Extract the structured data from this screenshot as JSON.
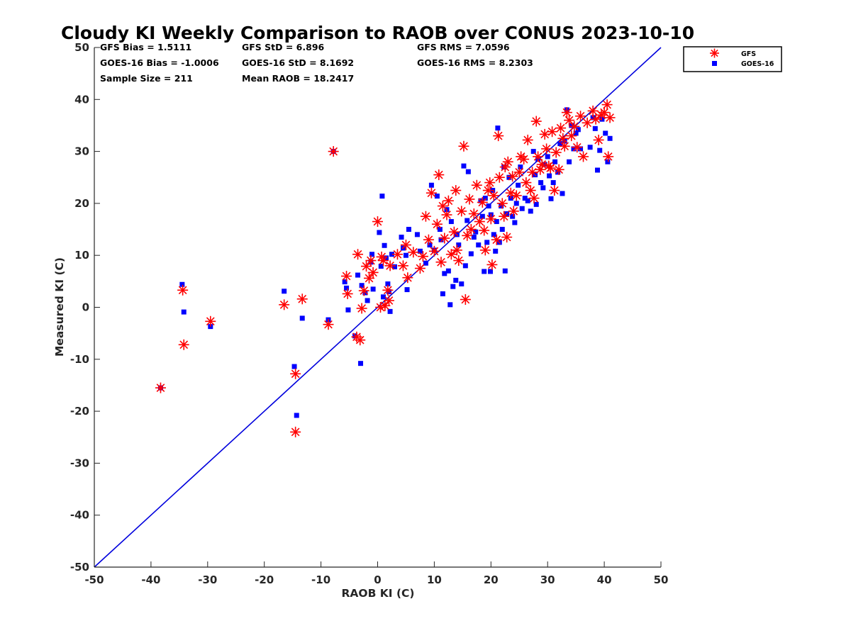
{
  "chart_data": {
    "type": "scatter",
    "title": "Cloudy KI Weekly Comparison to RAOB over CONUS 2023-10-10",
    "xlabel": "RAOB KI (C)",
    "ylabel": "Measured KI (C)",
    "xlim": [
      -50,
      50
    ],
    "ylim": [
      -50,
      50
    ],
    "xticks": [
      "-50",
      "-40",
      "-30",
      "-20",
      "-10",
      "0",
      "10",
      "20",
      "30",
      "40",
      "50"
    ],
    "yticks": [
      "50",
      "40",
      "30",
      "20",
      "10",
      "0",
      "-10",
      "-20",
      "-30",
      "-40",
      "-50"
    ],
    "grid": false,
    "legend_position": "top-right",
    "reference_line": {
      "x": [
        -50,
        50
      ],
      "y": [
        -50,
        50
      ],
      "color": "#0000dd"
    },
    "stats": [
      [
        "GFS Bias = 1.5111",
        "GFS StD = 6.896",
        "GFS RMS = 7.0596"
      ],
      [
        "GOES-16 Bias = -1.0006",
        "GOES-16 StD = 8.1692",
        "GOES-16 RMS = 8.2303"
      ],
      [
        "Sample Size = 211",
        "Mean RAOB = 18.2417",
        ""
      ]
    ],
    "series": [
      {
        "name": "GFS",
        "marker": "asterisk",
        "color": "#ff0000",
        "points": [
          [
            -38.3,
            -15.5
          ],
          [
            -34.4,
            3.3
          ],
          [
            -34.2,
            -7.2
          ],
          [
            -29.5,
            -2.7
          ],
          [
            -16.5,
            0.5
          ],
          [
            -14.5,
            -12.8
          ],
          [
            -14.5,
            -24
          ],
          [
            -13.3,
            1.6
          ],
          [
            -8.7,
            -3.3
          ],
          [
            -7.8,
            30
          ],
          [
            -5.5,
            6
          ],
          [
            -5.3,
            2.6
          ],
          [
            -3.7,
            -5.7
          ],
          [
            -3.5,
            10.2
          ],
          [
            -3.1,
            -6.3
          ],
          [
            -2.8,
            -0.2
          ],
          [
            -2.4,
            3.2
          ],
          [
            -2.0,
            7.9
          ],
          [
            -1.5,
            5.6
          ],
          [
            -1.2,
            9.0
          ],
          [
            -0.8,
            6.7
          ],
          [
            0,
            16.5
          ],
          [
            0.5,
            0
          ],
          [
            0.7,
            9.7
          ],
          [
            1.0,
            9.0
          ],
          [
            1.3,
            0.3
          ],
          [
            1.8,
            3.3
          ],
          [
            2.0,
            1.3
          ],
          [
            2.2,
            8.0
          ],
          [
            3.5,
            10.2
          ],
          [
            4.5,
            8.0
          ],
          [
            5.0,
            12.0
          ],
          [
            5.3,
            5.7
          ],
          [
            6.3,
            10.6
          ],
          [
            7.5,
            7.5
          ],
          [
            8.0,
            9.8
          ],
          [
            8.5,
            17.5
          ],
          [
            9.0,
            13.0
          ],
          [
            9.5,
            22.0
          ],
          [
            10.0,
            10.8
          ],
          [
            10.5,
            16.0
          ],
          [
            10.8,
            25.5
          ],
          [
            11.2,
            8.7
          ],
          [
            11.5,
            19.5
          ],
          [
            11.8,
            13.3
          ],
          [
            12.2,
            17.8
          ],
          [
            12.5,
            20.5
          ],
          [
            13.0,
            10.2
          ],
          [
            13.5,
            14.5
          ],
          [
            13.8,
            22.5
          ],
          [
            14.0,
            11.0
          ],
          [
            14.3,
            9.0
          ],
          [
            14.8,
            18.5
          ],
          [
            15.2,
            31.0
          ],
          [
            15.5,
            1.5
          ],
          [
            15.8,
            13.8
          ],
          [
            16.2,
            20.8
          ],
          [
            16.5,
            15.0
          ],
          [
            17.0,
            18.0
          ],
          [
            17.5,
            23.5
          ],
          [
            18.0,
            16.5
          ],
          [
            18.5,
            20.2
          ],
          [
            18.8,
            14.8
          ],
          [
            19.0,
            11.0
          ],
          [
            19.5,
            22.5
          ],
          [
            19.8,
            24.0
          ],
          [
            20.0,
            17.0
          ],
          [
            20.2,
            8.2
          ],
          [
            20.5,
            21.5
          ],
          [
            21.0,
            13.0
          ],
          [
            21.3,
            33.0
          ],
          [
            21.5,
            25.0
          ],
          [
            22.0,
            20.0
          ],
          [
            22.3,
            17.5
          ],
          [
            22.5,
            27.0
          ],
          [
            22.8,
            13.5
          ],
          [
            23.0,
            28.0
          ],
          [
            23.5,
            22.0
          ],
          [
            23.8,
            25.2
          ],
          [
            24.0,
            18.5
          ],
          [
            24.5,
            21.5
          ],
          [
            25.0,
            26.0
          ],
          [
            25.3,
            29.0
          ],
          [
            25.8,
            28.5
          ],
          [
            26.2,
            24.0
          ],
          [
            26.5,
            32.2
          ],
          [
            27.0,
            22.5
          ],
          [
            27.3,
            26.0
          ],
          [
            27.6,
            21.0
          ],
          [
            28.0,
            35.8
          ],
          [
            28.3,
            29.0
          ],
          [
            28.7,
            26.5
          ],
          [
            29.0,
            27.5
          ],
          [
            29.5,
            33.3
          ],
          [
            29.8,
            30.5
          ],
          [
            30.2,
            27.2
          ],
          [
            30.5,
            26.8
          ],
          [
            30.8,
            33.8
          ],
          [
            31.2,
            22.5
          ],
          [
            31.5,
            29.8
          ],
          [
            32.0,
            26.5
          ],
          [
            32.3,
            34.5
          ],
          [
            32.7,
            32.5
          ],
          [
            33.0,
            31.0
          ],
          [
            33.4,
            37.5
          ],
          [
            33.8,
            36.0
          ],
          [
            34.2,
            33.0
          ],
          [
            34.7,
            34.8
          ],
          [
            35.2,
            30.8
          ],
          [
            35.8,
            36.8
          ],
          [
            36.3,
            29.0
          ],
          [
            37.0,
            35.5
          ],
          [
            38.0,
            37.8
          ],
          [
            38.5,
            36.2
          ],
          [
            39.0,
            32.2
          ],
          [
            39.5,
            37.0
          ],
          [
            40.0,
            37.5
          ],
          [
            40.5,
            39.0
          ],
          [
            40.7,
            29.0
          ],
          [
            41.0,
            36.5
          ]
        ]
      },
      {
        "name": "GOES-16",
        "marker": "square",
        "color": "#0000ff",
        "points": [
          [
            -38.3,
            -15.5
          ],
          [
            -34.5,
            4.4
          ],
          [
            -34.2,
            -0.9
          ],
          [
            -29.5,
            -3.7
          ],
          [
            -16.5,
            3.1
          ],
          [
            -14.7,
            -11.4
          ],
          [
            -14.3,
            -20.8
          ],
          [
            -13.3,
            -2.1
          ],
          [
            -8.7,
            -2.4
          ],
          [
            -7.8,
            30
          ],
          [
            -5.8,
            4.9
          ],
          [
            -5.5,
            3.7
          ],
          [
            -5.2,
            -0.5
          ],
          [
            -4.0,
            -5.5
          ],
          [
            -3.5,
            6.2
          ],
          [
            -3.0,
            -10.8
          ],
          [
            -2.8,
            4.2
          ],
          [
            -2.2,
            2.8
          ],
          [
            -1.8,
            1.3
          ],
          [
            -1.2,
            8.7
          ],
          [
            -1.0,
            10.2
          ],
          [
            -0.8,
            3.5
          ],
          [
            0.3,
            14.4
          ],
          [
            0.6,
            7.9
          ],
          [
            0.8,
            21.4
          ],
          [
            1.0,
            2.0
          ],
          [
            1.2,
            11.9
          ],
          [
            1.5,
            9.5
          ],
          [
            1.8,
            4.5
          ],
          [
            2.0,
            3.0
          ],
          [
            2.2,
            -0.8
          ],
          [
            2.5,
            10.2
          ],
          [
            3.0,
            7.8
          ],
          [
            4.2,
            13.5
          ],
          [
            4.5,
            11.4
          ],
          [
            5.0,
            10.0
          ],
          [
            5.2,
            3.4
          ],
          [
            5.5,
            15.0
          ],
          [
            7.0,
            14.0
          ],
          [
            7.5,
            10.8
          ],
          [
            8.5,
            8.5
          ],
          [
            9.2,
            12.0
          ],
          [
            9.5,
            23.5
          ],
          [
            10.0,
            11.0
          ],
          [
            10.5,
            21.4
          ],
          [
            11.0,
            15.0
          ],
          [
            11.2,
            13.0
          ],
          [
            11.5,
            2.6
          ],
          [
            11.8,
            6.5
          ],
          [
            12.2,
            18.8
          ],
          [
            12.5,
            7.0
          ],
          [
            12.8,
            0.5
          ],
          [
            13.0,
            16.5
          ],
          [
            13.3,
            4.0
          ],
          [
            13.8,
            5.2
          ],
          [
            14.0,
            14.0
          ],
          [
            14.3,
            12.0
          ],
          [
            14.8,
            4.5
          ],
          [
            15.2,
            27.2
          ],
          [
            15.5,
            8.0
          ],
          [
            15.8,
            16.7
          ],
          [
            16.0,
            26.1
          ],
          [
            16.5,
            10.3
          ],
          [
            17.0,
            13.5
          ],
          [
            17.3,
            14.5
          ],
          [
            17.8,
            12.0
          ],
          [
            18.2,
            20.5
          ],
          [
            18.5,
            17.5
          ],
          [
            18.8,
            6.9
          ],
          [
            19.0,
            21.0
          ],
          [
            19.3,
            12.5
          ],
          [
            19.6,
            19.5
          ],
          [
            19.9,
            6.9
          ],
          [
            20.0,
            17.8
          ],
          [
            20.3,
            22.5
          ],
          [
            20.5,
            14.0
          ],
          [
            20.8,
            10.8
          ],
          [
            21.0,
            16.5
          ],
          [
            21.2,
            34.5
          ],
          [
            21.5,
            12.5
          ],
          [
            21.8,
            19.5
          ],
          [
            22.0,
            15.0
          ],
          [
            22.3,
            27.0
          ],
          [
            22.5,
            7.0
          ],
          [
            22.8,
            18.0
          ],
          [
            23.2,
            25.0
          ],
          [
            23.5,
            21.0
          ],
          [
            23.8,
            17.5
          ],
          [
            24.2,
            16.3
          ],
          [
            24.5,
            20.0
          ],
          [
            24.8,
            23.5
          ],
          [
            25.2,
            27.0
          ],
          [
            25.5,
            19.0
          ],
          [
            26.0,
            21.0
          ],
          [
            26.5,
            20.5
          ],
          [
            27.0,
            18.5
          ],
          [
            27.5,
            30.0
          ],
          [
            27.8,
            25.5
          ],
          [
            28.0,
            19.8
          ],
          [
            28.3,
            28.5
          ],
          [
            28.8,
            24.0
          ],
          [
            29.2,
            23.0
          ],
          [
            29.5,
            27.5
          ],
          [
            30.0,
            29.0
          ],
          [
            30.3,
            25.3
          ],
          [
            30.6,
            20.9
          ],
          [
            31.0,
            24.0
          ],
          [
            31.3,
            28.0
          ],
          [
            31.8,
            26.0
          ],
          [
            32.2,
            31.5
          ],
          [
            32.6,
            21.9
          ],
          [
            33.0,
            32.0
          ],
          [
            33.4,
            38.0
          ],
          [
            33.8,
            28.0
          ],
          [
            34.2,
            35.0
          ],
          [
            34.6,
            30.5
          ],
          [
            35.0,
            33.5
          ],
          [
            35.4,
            34.2
          ],
          [
            35.8,
            30.5
          ],
          [
            37.5,
            30.8
          ],
          [
            38.0,
            36.5
          ],
          [
            38.4,
            34.4
          ],
          [
            38.8,
            26.4
          ],
          [
            39.2,
            30.2
          ],
          [
            39.6,
            36.2
          ],
          [
            40.2,
            33.5
          ],
          [
            40.6,
            28.0
          ],
          [
            41.0,
            32.5
          ]
        ]
      }
    ]
  },
  "legend": {
    "gfs_label": "GFS",
    "goes_label": "GOES-16"
  }
}
